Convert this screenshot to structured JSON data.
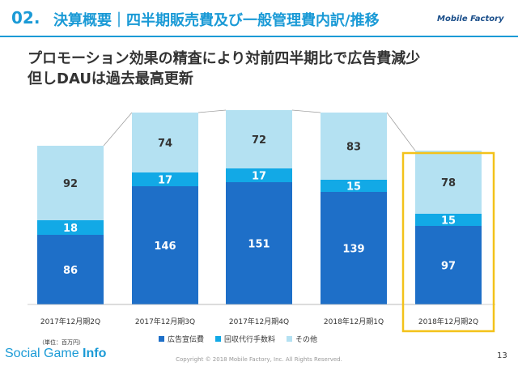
{
  "header": {
    "section_number": "02.",
    "title": "決算概要｜四半期販売費及び一般管理費内訳/推移",
    "logo_text": "Mobile Factory"
  },
  "subtitle": {
    "line1": "プロモーション効果の精査により対前四半期比で広告費減少",
    "line2": "但しDAUは過去最高更新"
  },
  "chart_data": {
    "type": "bar",
    "stacked": true,
    "categories": [
      "2017年12月期2Q",
      "2017年12月期3Q",
      "2017年12月期4Q",
      "2018年12月期1Q",
      "2018年12月期2Q"
    ],
    "series": [
      {
        "name": "広告宣伝費",
        "values": [
          86,
          146,
          151,
          139,
          97
        ],
        "color": "#1e6fc8"
      },
      {
        "name": "回収代行手数料",
        "values": [
          18,
          17,
          17,
          15,
          15
        ],
        "color": "#12a9e6"
      },
      {
        "name": "その他",
        "values": [
          92,
          74,
          72,
          83,
          78
        ],
        "color": "#b4e1f2"
      }
    ],
    "highlight_category": "2018年12月期2Q",
    "highlight_color": "#f3c21a",
    "connector_lines": true,
    "grid": false,
    "legend_position": "bottom"
  },
  "footer": {
    "unit_note": "（単位：百万円）",
    "brand_regular": "Social Game ",
    "brand_bold": "Info",
    "copyright": "Copyright © 2018 Mobile Factory, Inc. All Rights Reserved.",
    "page_number": "13"
  }
}
